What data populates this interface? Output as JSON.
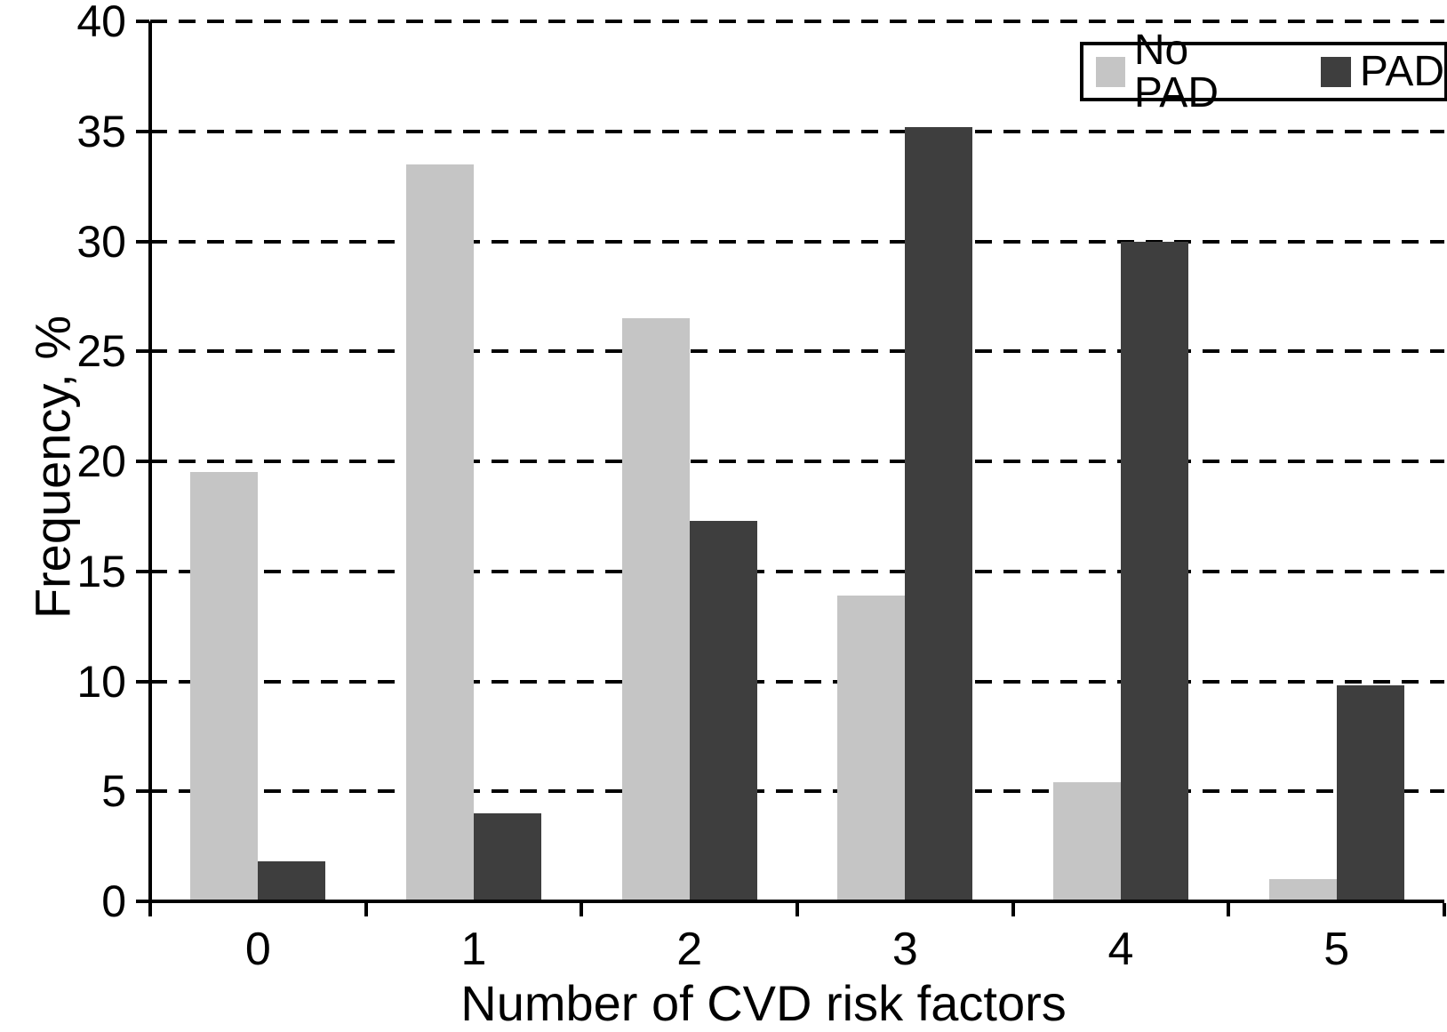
{
  "chart_data": {
    "type": "bar",
    "xlabel": "Number of CVD risk factors",
    "ylabel": "Frequency, %",
    "categories": [
      "0",
      "1",
      "2",
      "3",
      "4",
      "5"
    ],
    "series": [
      {
        "name": "No PAD",
        "color": "#c5c5c5",
        "values": [
          19.5,
          33.5,
          26.5,
          13.9,
          5.4,
          1.0
        ]
      },
      {
        "name": "PAD",
        "color": "#3e3e3e",
        "values": [
          1.8,
          4.0,
          17.3,
          35.2,
          30.0,
          9.8
        ]
      }
    ],
    "ylim": [
      0,
      40
    ],
    "yticks": [
      "0",
      "5",
      "10",
      "15",
      "20",
      "25",
      "30",
      "35",
      "40"
    ],
    "grid": "horizontal-dashed",
    "legend_position": "top-right",
    "colors": {
      "axis": "#000000",
      "grid": "#000000",
      "text": "#000000",
      "background": "#ffffff"
    }
  }
}
